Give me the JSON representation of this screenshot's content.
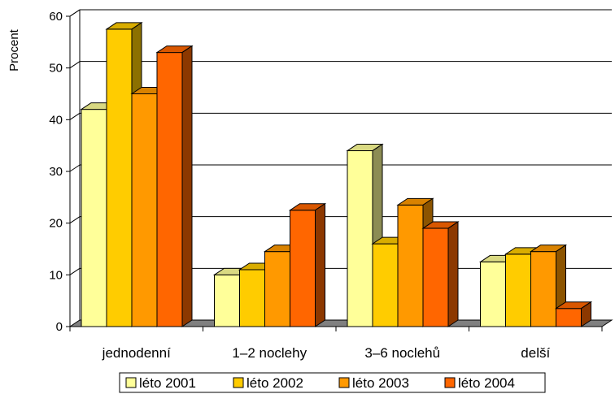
{
  "chart_data": {
    "type": "bar",
    "categories": [
      "jednodenní",
      "1–2 noclehy",
      "3–6 noclehů",
      "delší"
    ],
    "series": [
      {
        "name": "léto 2001",
        "values": [
          42,
          10,
          34,
          12.5
        ],
        "color": "#FFFF99"
      },
      {
        "name": "léto 2002",
        "values": [
          57.5,
          11,
          16,
          14
        ],
        "color": "#FFCC00"
      },
      {
        "name": "léto 2003",
        "values": [
          45,
          14.5,
          23.5,
          14.5
        ],
        "color": "#FF9900"
      },
      {
        "name": "léto 2004",
        "values": [
          53,
          22.5,
          19,
          3.5
        ],
        "color": "#FF6600"
      }
    ],
    "ylabel": "Procent",
    "ylim": [
      0,
      60
    ],
    "yticks": [
      0,
      10,
      20,
      30,
      40,
      50,
      60
    ],
    "grid": true,
    "legend_position": "bottom",
    "style": "3d-column"
  }
}
